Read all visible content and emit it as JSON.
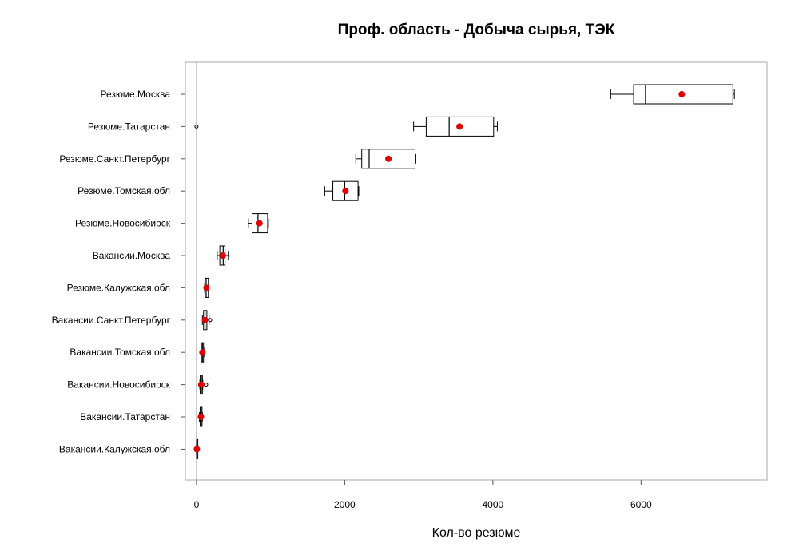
{
  "chart_data": {
    "type": "boxplot",
    "title": "Проф. область - Добыча сырья, ТЭК",
    "xlabel": "Кол-во резюме",
    "ylabel": "",
    "xlim": [
      -150,
      7700
    ],
    "xticks": [
      0,
      2000,
      4000,
      6000
    ],
    "grid": false,
    "reference_line": 0,
    "colors": {
      "box_stroke": "#000000",
      "mean_marker": "#e00000",
      "frame": "#aaaaaa",
      "reference_line": "#aaaaaa"
    },
    "categories": [
      "Резюме.Москва",
      "Резюме.Татарстан",
      "Резюме.Санкт.Петербург",
      "Резюме.Томская.обл",
      "Резюме.Новосибирск",
      "Вакансии.Москва",
      "Резюме.Калужская.обл",
      "Вакансии.Санкт.Петербург",
      "Вакансии.Томская.обл",
      "Вакансии.Новосибирск",
      "Вакансии.Татарстан",
      "Вакансии.Калужская.обл"
    ],
    "series": [
      {
        "category": "Резюме.Москва",
        "whisker_low": 5590,
        "q1": 5900,
        "median": 6060,
        "q3": 7240,
        "whisker_high": 7260,
        "mean": 6550,
        "outliers": []
      },
      {
        "category": "Резюме.Татарстан",
        "whisker_low": 2930,
        "q1": 3100,
        "median": 3410,
        "q3": 4010,
        "whisker_high": 4060,
        "mean": 3550,
        "outliers": [
          0
        ]
      },
      {
        "category": "Резюме.Санкт.Петербург",
        "whisker_low": 2150,
        "q1": 2230,
        "median": 2330,
        "q3": 2950,
        "whisker_high": 2960,
        "mean": 2590,
        "outliers": []
      },
      {
        "category": "Резюме.Томская.обл",
        "whisker_low": 1730,
        "q1": 1840,
        "median": 2000,
        "q3": 2180,
        "whisker_high": 2190,
        "mean": 2010,
        "outliers": []
      },
      {
        "category": "Резюме.Новосибирск",
        "whisker_low": 700,
        "q1": 750,
        "median": 830,
        "q3": 960,
        "whisker_high": 970,
        "mean": 850,
        "outliers": []
      },
      {
        "category": "Вакансии.Москва",
        "whisker_low": 280,
        "q1": 315,
        "median": 360,
        "q3": 385,
        "whisker_high": 430,
        "mean": 355,
        "outliers": []
      },
      {
        "category": "Резюме.Калужская.обл",
        "whisker_low": 110,
        "q1": 115,
        "median": 130,
        "q3": 160,
        "whisker_high": 165,
        "mean": 135,
        "outliers": []
      },
      {
        "category": "Вакансии.Санкт.Петербург",
        "whisker_low": 80,
        "q1": 95,
        "median": 115,
        "q3": 140,
        "whisker_high": 170,
        "mean": 115,
        "outliers": [
          185
        ]
      },
      {
        "category": "Вакансии.Томская.обл",
        "whisker_low": 60,
        "q1": 65,
        "median": 80,
        "q3": 95,
        "whisker_high": 100,
        "mean": 80,
        "outliers": []
      },
      {
        "category": "Вакансии.Новосибирск",
        "whisker_low": 45,
        "q1": 50,
        "median": 65,
        "q3": 80,
        "whisker_high": 85,
        "mean": 65,
        "outliers": [
          130
        ]
      },
      {
        "category": "Вакансии.Татарстан",
        "whisker_low": 40,
        "q1": 50,
        "median": 62,
        "q3": 75,
        "whisker_high": 80,
        "mean": 60,
        "outliers": []
      },
      {
        "category": "Вакансии.Калужская.обл",
        "whisker_low": 0,
        "q1": 2,
        "median": 5,
        "q3": 8,
        "whisker_high": 10,
        "mean": 5,
        "outliers": []
      }
    ]
  }
}
